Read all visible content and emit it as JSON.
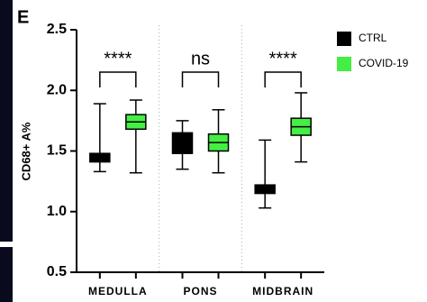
{
  "chart_data": {
    "type": "box",
    "panel_label": "E",
    "ylabel": "CD68+ A%",
    "categories": [
      "MEDULLA",
      "PONS",
      "MIDBRAIN"
    ],
    "series": [
      {
        "name": "CTRL",
        "color": "#000000",
        "min": [
          1.33,
          1.35,
          1.03
        ],
        "q1": [
          1.41,
          1.48,
          1.15
        ],
        "median": [
          1.44,
          1.56,
          1.19
        ],
        "q3": [
          1.48,
          1.65,
          1.22
        ],
        "max": [
          1.89,
          1.75,
          1.59
        ]
      },
      {
        "name": "COVID-19",
        "color": "#44ee44",
        "min": [
          1.32,
          1.32,
          1.41
        ],
        "q1": [
          1.68,
          1.5,
          1.63
        ],
        "median": [
          1.74,
          1.57,
          1.7
        ],
        "q3": [
          1.8,
          1.64,
          1.77
        ],
        "max": [
          1.92,
          1.84,
          1.98
        ]
      }
    ],
    "significance": [
      "****",
      "ns",
      "****"
    ],
    "ylim": [
      0.5,
      2.5
    ],
    "yticks": [
      0.5,
      {
        "value": 1.0,
        "label": "1.0"
      },
      1.5,
      {
        "value": 2.0,
        "label": "2.0"
      },
      2.5
    ]
  }
}
